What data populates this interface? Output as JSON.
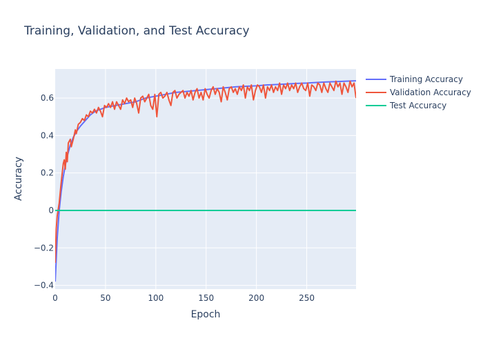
{
  "chart_data": {
    "type": "line",
    "title": "Training, Validation, and Test Accuracy",
    "xlabel": "Epoch",
    "ylabel": "Accuracy",
    "xlim": [
      0,
      299
    ],
    "ylim": [
      -0.42,
      0.755
    ],
    "x_ticks": [
      0,
      50,
      100,
      150,
      200,
      250
    ],
    "y_ticks": [
      -0.4,
      -0.2,
      0,
      0.2,
      0.4,
      0.6
    ],
    "y_tick_labels": [
      "−0.4",
      "−0.2",
      "0",
      "0.2",
      "0.4",
      "0.6"
    ],
    "grid": true,
    "legend_position": "top-right, outside plot",
    "background_color": "#E5ECF6",
    "series": [
      {
        "name": "Training Accuracy",
        "color": "#636EFA",
        "points": [
          [
            0,
            -0.38
          ],
          [
            2,
            -0.15
          ],
          [
            4,
            0.0
          ],
          [
            6,
            0.1
          ],
          [
            8,
            0.18
          ],
          [
            10,
            0.24
          ],
          [
            12,
            0.29
          ],
          [
            15,
            0.35
          ],
          [
            18,
            0.39
          ],
          [
            21,
            0.42
          ],
          [
            25,
            0.45
          ],
          [
            30,
            0.48
          ],
          [
            35,
            0.51
          ],
          [
            40,
            0.53
          ],
          [
            45,
            0.54
          ],
          [
            50,
            0.55
          ],
          [
            60,
            0.56
          ],
          [
            70,
            0.57
          ],
          [
            80,
            0.58
          ],
          [
            90,
            0.6
          ],
          [
            100,
            0.61
          ],
          [
            110,
            0.62
          ],
          [
            120,
            0.63
          ],
          [
            130,
            0.635
          ],
          [
            140,
            0.64
          ],
          [
            150,
            0.645
          ],
          [
            160,
            0.65
          ],
          [
            170,
            0.655
          ],
          [
            180,
            0.66
          ],
          [
            190,
            0.663
          ],
          [
            200,
            0.665
          ],
          [
            210,
            0.67
          ],
          [
            220,
            0.672
          ],
          [
            230,
            0.675
          ],
          [
            240,
            0.678
          ],
          [
            250,
            0.68
          ],
          [
            260,
            0.683
          ],
          [
            270,
            0.686
          ],
          [
            280,
            0.688
          ],
          [
            290,
            0.69
          ],
          [
            299,
            0.692
          ]
        ]
      },
      {
        "name": "Validation Accuracy",
        "color": "#EF553B",
        "points": [
          [
            0,
            -0.28
          ],
          [
            1,
            -0.1
          ],
          [
            2,
            -0.03
          ],
          [
            4,
            0.04
          ],
          [
            6,
            0.15
          ],
          [
            8,
            0.25
          ],
          [
            9,
            0.27
          ],
          [
            10,
            0.22
          ],
          [
            11,
            0.31
          ],
          [
            12,
            0.26
          ],
          [
            13,
            0.36
          ],
          [
            15,
            0.38
          ],
          [
            16,
            0.34
          ],
          [
            18,
            0.38
          ],
          [
            20,
            0.43
          ],
          [
            21,
            0.41
          ],
          [
            23,
            0.46
          ],
          [
            25,
            0.47
          ],
          [
            27,
            0.49
          ],
          [
            29,
            0.48
          ],
          [
            31,
            0.51
          ],
          [
            33,
            0.5
          ],
          [
            35,
            0.53
          ],
          [
            37,
            0.52
          ],
          [
            39,
            0.54
          ],
          [
            41,
            0.52
          ],
          [
            43,
            0.55
          ],
          [
            45,
            0.53
          ],
          [
            47,
            0.5
          ],
          [
            49,
            0.56
          ],
          [
            51,
            0.55
          ],
          [
            53,
            0.57
          ],
          [
            55,
            0.55
          ],
          [
            57,
            0.58
          ],
          [
            59,
            0.54
          ],
          [
            61,
            0.58
          ],
          [
            63,
            0.56
          ],
          [
            65,
            0.54
          ],
          [
            67,
            0.59
          ],
          [
            69,
            0.57
          ],
          [
            71,
            0.6
          ],
          [
            73,
            0.58
          ],
          [
            75,
            0.59
          ],
          [
            77,
            0.55
          ],
          [
            79,
            0.6
          ],
          [
            81,
            0.57
          ],
          [
            83,
            0.52
          ],
          [
            85,
            0.6
          ],
          [
            87,
            0.61
          ],
          [
            89,
            0.58
          ],
          [
            91,
            0.6
          ],
          [
            93,
            0.62
          ],
          [
            95,
            0.56
          ],
          [
            97,
            0.54
          ],
          [
            99,
            0.62
          ],
          [
            101,
            0.5
          ],
          [
            103,
            0.62
          ],
          [
            105,
            0.63
          ],
          [
            107,
            0.6
          ],
          [
            109,
            0.61
          ],
          [
            111,
            0.63
          ],
          [
            113,
            0.59
          ],
          [
            115,
            0.56
          ],
          [
            117,
            0.63
          ],
          [
            119,
            0.64
          ],
          [
            121,
            0.6
          ],
          [
            123,
            0.62
          ],
          [
            125,
            0.63
          ],
          [
            127,
            0.64
          ],
          [
            129,
            0.6
          ],
          [
            131,
            0.63
          ],
          [
            133,
            0.61
          ],
          [
            135,
            0.64
          ],
          [
            137,
            0.59
          ],
          [
            139,
            0.63
          ],
          [
            141,
            0.65
          ],
          [
            143,
            0.6
          ],
          [
            145,
            0.63
          ],
          [
            147,
            0.59
          ],
          [
            149,
            0.65
          ],
          [
            151,
            0.62
          ],
          [
            153,
            0.6
          ],
          [
            155,
            0.64
          ],
          [
            157,
            0.66
          ],
          [
            159,
            0.62
          ],
          [
            161,
            0.65
          ],
          [
            163,
            0.63
          ],
          [
            165,
            0.58
          ],
          [
            167,
            0.66
          ],
          [
            169,
            0.63
          ],
          [
            171,
            0.59
          ],
          [
            173,
            0.65
          ],
          [
            175,
            0.66
          ],
          [
            177,
            0.63
          ],
          [
            179,
            0.65
          ],
          [
            181,
            0.62
          ],
          [
            183,
            0.66
          ],
          [
            185,
            0.64
          ],
          [
            187,
            0.67
          ],
          [
            189,
            0.6
          ],
          [
            191,
            0.66
          ],
          [
            193,
            0.64
          ],
          [
            195,
            0.67
          ],
          [
            197,
            0.59
          ],
          [
            199,
            0.64
          ],
          [
            201,
            0.67
          ],
          [
            203,
            0.66
          ],
          [
            205,
            0.63
          ],
          [
            207,
            0.67
          ],
          [
            209,
            0.6
          ],
          [
            211,
            0.66
          ],
          [
            213,
            0.64
          ],
          [
            215,
            0.67
          ],
          [
            217,
            0.63
          ],
          [
            219,
            0.66
          ],
          [
            221,
            0.64
          ],
          [
            223,
            0.68
          ],
          [
            225,
            0.62
          ],
          [
            227,
            0.67
          ],
          [
            229,
            0.65
          ],
          [
            231,
            0.68
          ],
          [
            233,
            0.64
          ],
          [
            235,
            0.67
          ],
          [
            237,
            0.65
          ],
          [
            239,
            0.68
          ],
          [
            241,
            0.63
          ],
          [
            243,
            0.66
          ],
          [
            245,
            0.68
          ],
          [
            247,
            0.65
          ],
          [
            249,
            0.64
          ],
          [
            251,
            0.68
          ],
          [
            253,
            0.61
          ],
          [
            255,
            0.67
          ],
          [
            257,
            0.66
          ],
          [
            259,
            0.64
          ],
          [
            261,
            0.68
          ],
          [
            263,
            0.67
          ],
          [
            265,
            0.63
          ],
          [
            267,
            0.68
          ],
          [
            269,
            0.65
          ],
          [
            271,
            0.63
          ],
          [
            273,
            0.68
          ],
          [
            275,
            0.66
          ],
          [
            277,
            0.64
          ],
          [
            279,
            0.69
          ],
          [
            281,
            0.66
          ],
          [
            283,
            0.68
          ],
          [
            285,
            0.62
          ],
          [
            287,
            0.68
          ],
          [
            289,
            0.66
          ],
          [
            291,
            0.63
          ],
          [
            293,
            0.69
          ],
          [
            295,
            0.66
          ],
          [
            297,
            0.68
          ],
          [
            299,
            0.6
          ]
        ]
      },
      {
        "name": "Test Accuracy",
        "color": "#00CC96",
        "points": [
          [
            0,
            0.0
          ],
          [
            299,
            0.0
          ]
        ]
      }
    ]
  }
}
